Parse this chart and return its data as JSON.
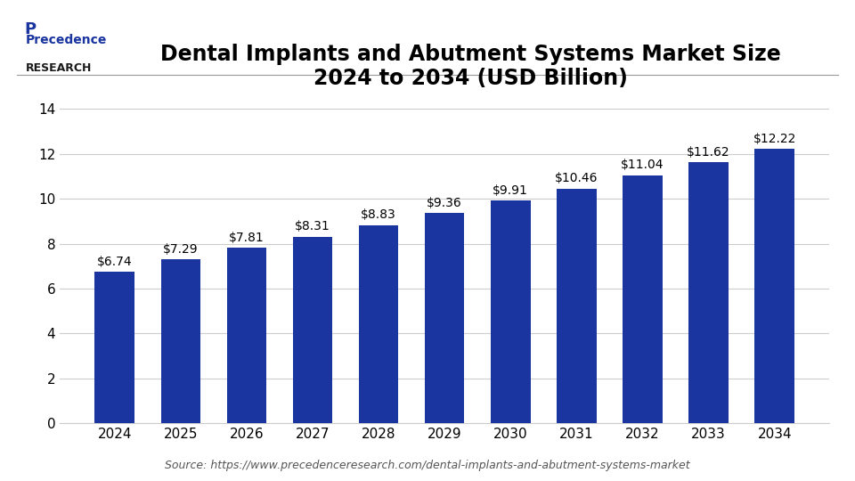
{
  "title_line1": "Dental Implants and Abutment Systems Market Size",
  "title_line2": "2024 to 2034 (USD Billion)",
  "categories": [
    "2024",
    "2025",
    "2026",
    "2027",
    "2028",
    "2029",
    "2030",
    "2031",
    "2032",
    "2033",
    "2034"
  ],
  "values": [
    6.74,
    7.29,
    7.81,
    8.31,
    8.83,
    9.36,
    9.91,
    10.46,
    11.04,
    11.62,
    12.22
  ],
  "labels": [
    "$6.74",
    "$7.29",
    "$7.81",
    "$8.31",
    "$8.83",
    "$9.36",
    "$9.91",
    "$10.46",
    "$11.04",
    "$11.62",
    "$12.22"
  ],
  "bar_color": "#1a35a0",
  "background_color": "#ffffff",
  "plot_bg_color": "#ffffff",
  "title_color": "#000000",
  "label_color": "#000000",
  "tick_color": "#000000",
  "grid_color": "#cccccc",
  "ylim": [
    0,
    15
  ],
  "yticks": [
    0,
    2,
    4,
    6,
    8,
    10,
    12,
    14
  ],
  "source_text": "Source: https://www.precedenceresearch.com/dental-implants-and-abutment-systems-market",
  "logo_text_precedence": "Precedence",
  "logo_text_research": "RESEARCH",
  "title_fontsize": 17,
  "label_fontsize": 10,
  "tick_fontsize": 11,
  "source_fontsize": 9
}
